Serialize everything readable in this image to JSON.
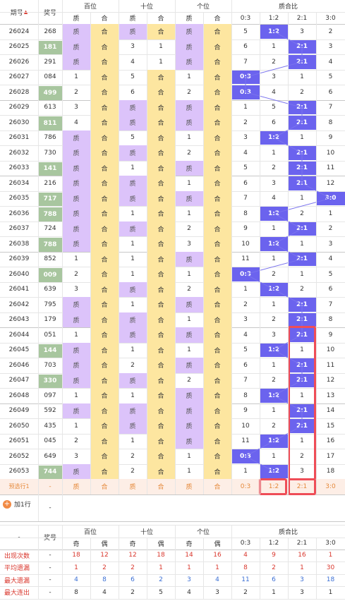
{
  "header": {
    "period": "期号",
    "award": "奖号",
    "groups": [
      "百位",
      "十位",
      "个位"
    ],
    "ratio_title": "质合比",
    "sub_prime": "质",
    "sub_comp": "合",
    "ratio_cols": [
      "0:3",
      "1:2",
      "2:1",
      "3:0"
    ]
  },
  "rows": [
    {
      "period": "26024",
      "award": "268",
      "digits": [
        {
          "t": "质",
          "v": "1"
        },
        {
          "t": "合",
          "v": "2"
        },
        {
          "t": "质",
          "v": "1"
        },
        {
          "t": "合",
          "v": "2"
        },
        {
          "t": "质",
          "v": "1"
        },
        {
          "t": "合",
          "v": "2"
        }
      ]
    },
    {
      "period": "26025",
      "award": "181",
      "digits": [
        {
          "t": "质",
          "v": "1"
        },
        {
          "t": "合",
          "v": "2"
        },
        {
          "t": "合",
          "v": "3"
        },
        {
          "t": "质",
          "v": "1"
        },
        {
          "t": "质",
          "v": "1"
        },
        {
          "t": "合",
          "v": "2"
        }
      ]
    },
    {
      "period": "26026",
      "award": "291",
      "digits": [
        {
          "t": "质",
          "v": "1"
        },
        {
          "t": "合",
          "v": "3"
        },
        {
          "t": "合",
          "v": "4"
        },
        {
          "t": "质",
          "v": "1"
        },
        {
          "t": "质",
          "v": "1"
        },
        {
          "t": "合",
          "v": "2"
        }
      ]
    },
    {
      "period": "26027",
      "award": "084",
      "digits": [
        {
          "t": "合",
          "v": "1"
        },
        {
          "t": "合",
          "v": "1"
        },
        {
          "t": "合",
          "v": "5"
        },
        {
          "t": "合",
          "v": "1"
        },
        {
          "t": "合",
          "v": "1"
        },
        {
          "t": "合",
          "v": "1"
        }
      ]
    },
    {
      "period": "26028",
      "award": "499",
      "digits": [
        {
          "t": "合",
          "v": "2"
        },
        {
          "t": "合",
          "v": "1"
        },
        {
          "t": "合",
          "v": "6"
        },
        {
          "t": "合",
          "v": "1"
        },
        {
          "t": "合",
          "v": "2"
        },
        {
          "t": "合",
          "v": "1"
        }
      ]
    },
    {
      "period": "26029",
      "award": "613",
      "digits": [
        {
          "t": "合",
          "v": "3"
        },
        {
          "t": "合",
          "v": "1"
        },
        {
          "t": "质",
          "v": "1"
        },
        {
          "t": "合",
          "v": "1"
        },
        {
          "t": "质",
          "v": "1"
        },
        {
          "t": "合",
          "v": "1"
        }
      ]
    },
    {
      "period": "26030",
      "award": "811",
      "digits": [
        {
          "t": "合",
          "v": "4"
        },
        {
          "t": "合",
          "v": "1"
        },
        {
          "t": "质",
          "v": "1"
        },
        {
          "t": "合",
          "v": "2"
        },
        {
          "t": "质",
          "v": "1"
        },
        {
          "t": "合",
          "v": "2"
        }
      ]
    },
    {
      "period": "26031",
      "award": "786",
      "digits": [
        {
          "t": "质",
          "v": "1"
        },
        {
          "t": "合",
          "v": "1"
        },
        {
          "t": "合",
          "v": "5"
        },
        {
          "t": "合",
          "v": "1"
        },
        {
          "t": "合",
          "v": "1"
        },
        {
          "t": "合",
          "v": "1"
        }
      ]
    },
    {
      "period": "26032",
      "award": "730",
      "digits": [
        {
          "t": "质",
          "v": "1"
        },
        {
          "t": "合",
          "v": "2"
        },
        {
          "t": "质",
          "v": "1"
        },
        {
          "t": "合",
          "v": "1"
        },
        {
          "t": "合",
          "v": "2"
        },
        {
          "t": "合",
          "v": "1"
        }
      ]
    },
    {
      "period": "26033",
      "award": "141",
      "digits": [
        {
          "t": "质",
          "v": "1"
        },
        {
          "t": "合",
          "v": "3"
        },
        {
          "t": "合",
          "v": "1"
        },
        {
          "t": "合",
          "v": "1"
        },
        {
          "t": "质",
          "v": "1"
        },
        {
          "t": "合",
          "v": "1"
        }
      ]
    },
    {
      "period": "26034",
      "award": "216",
      "digits": [
        {
          "t": "质",
          "v": "1"
        },
        {
          "t": "合",
          "v": "4"
        },
        {
          "t": "质",
          "v": "1"
        },
        {
          "t": "合",
          "v": "1"
        },
        {
          "t": "合",
          "v": "1"
        },
        {
          "t": "合",
          "v": "1"
        }
      ]
    },
    {
      "period": "26035",
      "award": "717",
      "digits": [
        {
          "t": "质",
          "v": "1"
        },
        {
          "t": "合",
          "v": "5"
        },
        {
          "t": "质",
          "v": "1"
        },
        {
          "t": "合",
          "v": "2"
        },
        {
          "t": "质",
          "v": "1"
        },
        {
          "t": "合",
          "v": "1"
        }
      ]
    },
    {
      "period": "26036",
      "award": "788",
      "digits": [
        {
          "t": "质",
          "v": "1"
        },
        {
          "t": "合",
          "v": "6"
        },
        {
          "t": "合",
          "v": "1"
        },
        {
          "t": "合",
          "v": "1"
        },
        {
          "t": "合",
          "v": "1"
        },
        {
          "t": "合",
          "v": "1"
        }
      ]
    },
    {
      "period": "26037",
      "award": "724",
      "digits": [
        {
          "t": "质",
          "v": "1"
        },
        {
          "t": "合",
          "v": "7"
        },
        {
          "t": "质",
          "v": "1"
        },
        {
          "t": "合",
          "v": "1"
        },
        {
          "t": "合",
          "v": "2"
        },
        {
          "t": "合",
          "v": "1"
        }
      ]
    },
    {
      "period": "26038",
      "award": "788",
      "digits": [
        {
          "t": "质",
          "v": "1"
        },
        {
          "t": "合",
          "v": "8"
        },
        {
          "t": "合",
          "v": "1"
        },
        {
          "t": "合",
          "v": "1"
        },
        {
          "t": "合",
          "v": "3"
        },
        {
          "t": "合",
          "v": "1"
        }
      ]
    },
    {
      "period": "26039",
      "award": "852",
      "digits": [
        {
          "t": "合",
          "v": "1"
        },
        {
          "t": "合",
          "v": "1"
        },
        {
          "t": "合",
          "v": "1"
        },
        {
          "t": "合",
          "v": "1"
        },
        {
          "t": "质",
          "v": "1"
        },
        {
          "t": "合",
          "v": "1"
        }
      ]
    },
    {
      "period": "26040",
      "award": "009",
      "digits": [
        {
          "t": "合",
          "v": "2"
        },
        {
          "t": "合",
          "v": "1"
        },
        {
          "t": "合",
          "v": "1"
        },
        {
          "t": "合",
          "v": "1"
        },
        {
          "t": "合",
          "v": "1"
        },
        {
          "t": "合",
          "v": "1"
        }
      ]
    },
    {
      "period": "26041",
      "award": "639",
      "digits": [
        {
          "t": "合",
          "v": "3"
        },
        {
          "t": "合",
          "v": "1"
        },
        {
          "t": "质",
          "v": "1"
        },
        {
          "t": "合",
          "v": "1"
        },
        {
          "t": "合",
          "v": "2"
        },
        {
          "t": "合",
          "v": "1"
        }
      ]
    },
    {
      "period": "26042",
      "award": "795",
      "digits": [
        {
          "t": "质",
          "v": "1"
        },
        {
          "t": "合",
          "v": "1"
        },
        {
          "t": "合",
          "v": "1"
        },
        {
          "t": "合",
          "v": "1"
        },
        {
          "t": "质",
          "v": "1"
        },
        {
          "t": "合",
          "v": "1"
        }
      ]
    },
    {
      "period": "26043",
      "award": "179",
      "digits": [
        {
          "t": "质",
          "v": "1"
        },
        {
          "t": "合",
          "v": "2"
        },
        {
          "t": "质",
          "v": "1"
        },
        {
          "t": "合",
          "v": "1"
        },
        {
          "t": "合",
          "v": "1"
        },
        {
          "t": "合",
          "v": "1"
        }
      ]
    },
    {
      "period": "26044",
      "award": "051",
      "digits": [
        {
          "t": "合",
          "v": "1"
        },
        {
          "t": "合",
          "v": "1"
        },
        {
          "t": "质",
          "v": "2"
        },
        {
          "t": "合",
          "v": "1"
        },
        {
          "t": "质",
          "v": "1"
        },
        {
          "t": "合",
          "v": "1"
        }
      ]
    },
    {
      "period": "26045",
      "award": "144",
      "digits": [
        {
          "t": "质",
          "v": "1"
        },
        {
          "t": "合",
          "v": "1"
        },
        {
          "t": "合",
          "v": "1"
        },
        {
          "t": "合",
          "v": "1"
        },
        {
          "t": "合",
          "v": "1"
        },
        {
          "t": "合",
          "v": "1"
        }
      ]
    },
    {
      "period": "26046",
      "award": "703",
      "digits": [
        {
          "t": "质",
          "v": "1"
        },
        {
          "t": "合",
          "v": "2"
        },
        {
          "t": "合",
          "v": "2"
        },
        {
          "t": "合",
          "v": "1"
        },
        {
          "t": "质",
          "v": "1"
        },
        {
          "t": "合",
          "v": "1"
        }
      ]
    },
    {
      "period": "26047",
      "award": "330",
      "digits": [
        {
          "t": "质",
          "v": "1"
        },
        {
          "t": "合",
          "v": "3"
        },
        {
          "t": "质",
          "v": "1"
        },
        {
          "t": "合",
          "v": "1"
        },
        {
          "t": "合",
          "v": "2"
        },
        {
          "t": "合",
          "v": "1"
        }
      ]
    },
    {
      "period": "26048",
      "award": "097",
      "digits": [
        {
          "t": "合",
          "v": "1"
        },
        {
          "t": "合",
          "v": "1"
        },
        {
          "t": "合",
          "v": "1"
        },
        {
          "t": "合",
          "v": "1"
        },
        {
          "t": "质",
          "v": "1"
        },
        {
          "t": "合",
          "v": "1"
        }
      ]
    },
    {
      "period": "26049",
      "award": "592",
      "digits": [
        {
          "t": "质",
          "v": "1"
        },
        {
          "t": "合",
          "v": "1"
        },
        {
          "t": "质",
          "v": "2"
        },
        {
          "t": "合",
          "v": "1"
        },
        {
          "t": "质",
          "v": "2"
        },
        {
          "t": "合",
          "v": "1"
        }
      ]
    },
    {
      "period": "26050",
      "award": "435",
      "digits": [
        {
          "t": "合",
          "v": "1"
        },
        {
          "t": "合",
          "v": "2"
        },
        {
          "t": "质",
          "v": "1"
        },
        {
          "t": "合",
          "v": "1"
        },
        {
          "t": "质",
          "v": "3"
        },
        {
          "t": "合",
          "v": "1"
        }
      ]
    },
    {
      "period": "26051",
      "award": "045",
      "digits": [
        {
          "t": "合",
          "v": "2"
        },
        {
          "t": "合",
          "v": "1"
        },
        {
          "t": "合",
          "v": "1"
        },
        {
          "t": "合",
          "v": "2"
        },
        {
          "t": "质",
          "v": "4"
        },
        {
          "t": "合",
          "v": "1"
        }
      ]
    },
    {
      "period": "26052",
      "award": "649",
      "digits": [
        {
          "t": "合",
          "v": "3"
        },
        {
          "t": "合",
          "v": "2"
        },
        {
          "t": "合",
          "v": "2"
        },
        {
          "t": "合",
          "v": "1"
        },
        {
          "t": "合",
          "v": "1"
        },
        {
          "t": "合",
          "v": "1"
        }
      ]
    },
    {
      "period": "26053",
      "award": "744",
      "digits": [
        {
          "t": "质",
          "v": "1"
        },
        {
          "t": "合",
          "v": "3"
        },
        {
          "t": "合",
          "v": "2"
        },
        {
          "t": "合",
          "v": "2"
        },
        {
          "t": "合",
          "v": "1"
        },
        {
          "t": "合",
          "v": "1"
        }
      ]
    }
  ],
  "ratios": [
    [
      "5",
      "1:2",
      "3",
      "2"
    ],
    [
      "6",
      "1",
      "2:1",
      "3"
    ],
    [
      "7",
      "2",
      "2:1",
      "4"
    ],
    [
      "0:3",
      "3",
      "1",
      "5"
    ],
    [
      "0:3",
      "4",
      "2",
      "6"
    ],
    [
      "1",
      "5",
      "2:1",
      "7"
    ],
    [
      "2",
      "6",
      "2:1",
      "8"
    ],
    [
      "3",
      "1:2",
      "1",
      "9"
    ],
    [
      "4",
      "1",
      "2:1",
      "10"
    ],
    [
      "5",
      "2",
      "2:1",
      "11"
    ],
    [
      "6",
      "3",
      "2:1",
      "12"
    ],
    [
      "7",
      "4",
      "1",
      "3:0"
    ],
    [
      "8",
      "1:2",
      "2",
      "1"
    ],
    [
      "9",
      "1",
      "2:1",
      "2"
    ],
    [
      "10",
      "1:2",
      "1",
      "3"
    ],
    [
      "11",
      "1",
      "2:1",
      "4"
    ],
    [
      "0:3",
      "2",
      "1",
      "5"
    ],
    [
      "1",
      "1:2",
      "2",
      "6"
    ],
    [
      "2",
      "1",
      "2:1",
      "7"
    ],
    [
      "3",
      "2",
      "2:1",
      "8"
    ],
    [
      "4",
      "3",
      "2:1",
      "9"
    ],
    [
      "5",
      "1:2",
      "1",
      "10"
    ],
    [
      "6",
      "1",
      "2:1",
      "11"
    ],
    [
      "7",
      "2",
      "2:1",
      "12"
    ],
    [
      "8",
      "1:2",
      "1",
      "13"
    ],
    [
      "9",
      "1",
      "2:1",
      "14"
    ],
    [
      "10",
      "2",
      "2:1",
      "15"
    ],
    [
      "11",
      "1:2",
      "1",
      "16"
    ],
    [
      "0:3",
      "1",
      "2",
      "17"
    ],
    [
      "1",
      "1:2",
      "3",
      "18"
    ]
  ],
  "prediction": {
    "label": "预选行1",
    "award": "-",
    "cells": [
      "质",
      "合",
      "质",
      "合",
      "质",
      "合"
    ],
    "ratios": [
      "0:3",
      "1:2",
      "2:1",
      "3:0"
    ]
  },
  "add_row": {
    "label": "加1行",
    "value": "-"
  },
  "footer_header": {
    "dash": "-",
    "award": "奖号",
    "groups": [
      "百位",
      "十位",
      "个位"
    ],
    "ratio_title": "质合比",
    "odd": "奇",
    "even": "偶",
    "ratio_cols": [
      "0:3",
      "1:2",
      "2:1",
      "3:0"
    ]
  },
  "stats": [
    {
      "label": "出现次数",
      "award": "-",
      "values": [
        "18",
        "12",
        "12",
        "18",
        "14",
        "16",
        "4",
        "9",
        "16",
        "1"
      ]
    },
    {
      "label": "平均遗漏",
      "award": "-",
      "values": [
        "1",
        "2",
        "2",
        "1",
        "1",
        "1",
        "8",
        "2",
        "1",
        "30"
      ]
    },
    {
      "label": "最大遗漏",
      "award": "-",
      "values": [
        "4",
        "8",
        "6",
        "2",
        "3",
        "4",
        "11",
        "6",
        "3",
        "18"
      ]
    },
    {
      "label": "最大连出",
      "award": "-",
      "values": [
        "8",
        "4",
        "2",
        "5",
        "4",
        "3",
        "2",
        "1",
        "3",
        "1"
      ]
    }
  ],
  "colors": {
    "prime_bg": "#dcc3fa",
    "composite_bg": "#fde6a0",
    "award_highlight": "#a8c69f",
    "ratio_hit": "#6b63ee",
    "highlight_border": "#ef4d57",
    "stat_label": "#d9362c"
  }
}
